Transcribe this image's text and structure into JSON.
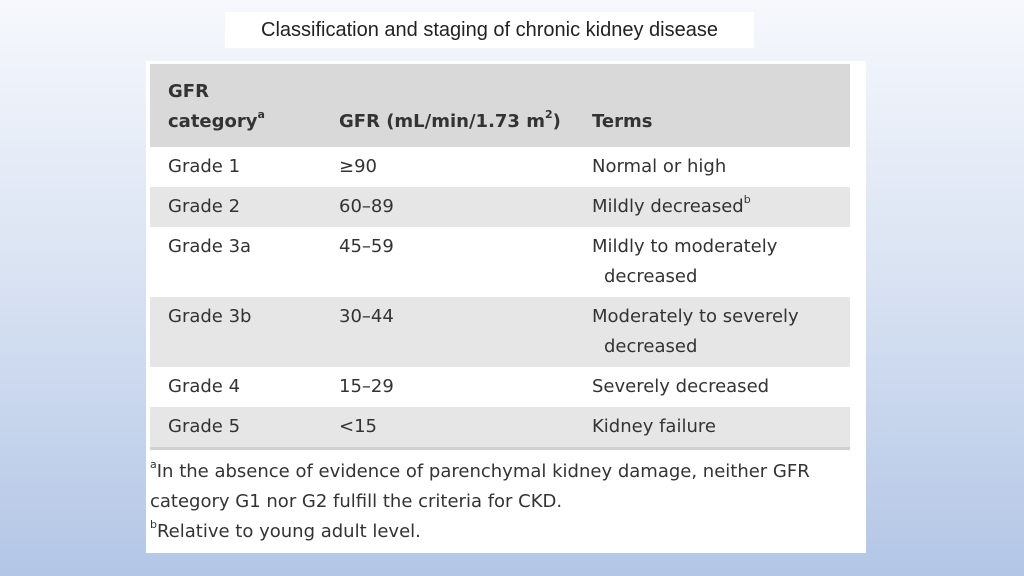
{
  "title": "Classification and staging of chronic kidney disease",
  "table": {
    "headers": {
      "col1_line1": "GFR",
      "col1_line2": "category",
      "col1_sup": "a",
      "col2": "GFR (mL/min/1.73 m",
      "col2_sup": "2",
      "col2_close": ")",
      "col3": "Terms"
    },
    "rows": [
      {
        "grade": "Grade 1",
        "gfr": "≥90",
        "term1": "Normal or high",
        "term2": "",
        "sup": ""
      },
      {
        "grade": "Grade 2",
        "gfr": "60–89",
        "term1": "Mildly decreased",
        "term2": "",
        "sup": "b"
      },
      {
        "grade": "Grade 3a",
        "gfr": "45–59",
        "term1": "Mildly to moderately",
        "term2": "decreased",
        "sup": ""
      },
      {
        "grade": "Grade 3b",
        "gfr": "30–44",
        "term1": "Moderately to severely",
        "term2": "decreased",
        "sup": ""
      },
      {
        "grade": "Grade 4",
        "gfr": "15–29",
        "term1": "Severely decreased",
        "term2": "",
        "sup": ""
      },
      {
        "grade": "Grade 5",
        "gfr": "<15",
        "term1": "Kidney failure",
        "term2": "",
        "sup": ""
      }
    ]
  },
  "footnotes": [
    {
      "mark": "a",
      "text": "In the absence of evidence of parenchymal kidney damage, neither GFR category G1 nor G2 fulfill the criteria for CKD."
    },
    {
      "mark": "b",
      "text": "Relative to young adult level."
    }
  ]
}
